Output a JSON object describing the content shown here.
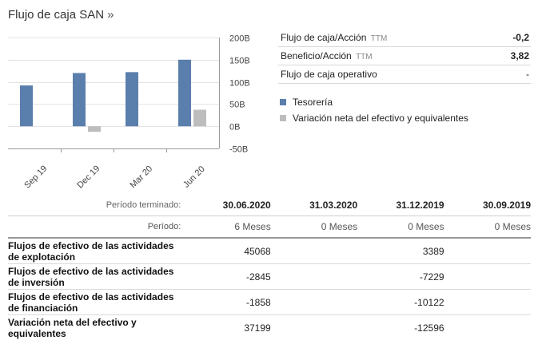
{
  "header": {
    "title": "Flujo de caja SAN",
    "arrow": "»"
  },
  "chart_data": {
    "type": "bar",
    "categories": [
      "Sep 19",
      "Dec 19",
      "Mar 20",
      "Jun 20"
    ],
    "series": [
      {
        "name": "Tesorería",
        "color": "#5b7fad",
        "values": [
          92,
          120,
          122,
          150
        ]
      },
      {
        "name": "Variación neta del efectivo y equivalentes",
        "color": "#bdbdbd",
        "values": [
          null,
          -12.6,
          null,
          37.2
        ]
      }
    ],
    "yticks": [
      "200B",
      "150B",
      "100B",
      "50B",
      "0B",
      "-50B"
    ],
    "ylim": [
      -50,
      200
    ],
    "ylabel_position": "right"
  },
  "metrics": [
    {
      "label": "Flujo de caja/Acción",
      "suffix": "TTM",
      "value": "-0,2",
      "bold": true
    },
    {
      "label": "Beneficio/Acción",
      "suffix": "TTM",
      "value": "3,82",
      "bold": true
    },
    {
      "label": "Flujo de caja operativo",
      "suffix": "",
      "value": "-",
      "bold": false
    }
  ],
  "legend": [
    {
      "label": "Tesorería",
      "color": "#5b7fad"
    },
    {
      "label": "Variación neta del efectivo y equivalentes",
      "color": "#bdbdbd"
    }
  ],
  "table": {
    "period_end_label": "Período terminado:",
    "period_label": "Período:",
    "dates": [
      "30.06.2020",
      "31.03.2020",
      "31.12.2019",
      "30.09.2019"
    ],
    "periods": [
      "6 Meses",
      "0 Meses",
      "0 Meses",
      "0 Meses"
    ],
    "rows": [
      {
        "label": "Flujos de efectivo de las actividades de explotación",
        "values": [
          "45068",
          "",
          "3389",
          ""
        ]
      },
      {
        "label": "Flujos de efectivo de las actividades de inversión",
        "values": [
          "-2845",
          "",
          "-7229",
          ""
        ]
      },
      {
        "label": "Flujos de efectivo de las actividades de financiación",
        "values": [
          "-1858",
          "",
          "-10122",
          ""
        ]
      },
      {
        "label": "Variación neta del efectivo y equivalentes",
        "values": [
          "37199",
          "",
          "-12596",
          ""
        ]
      }
    ]
  }
}
